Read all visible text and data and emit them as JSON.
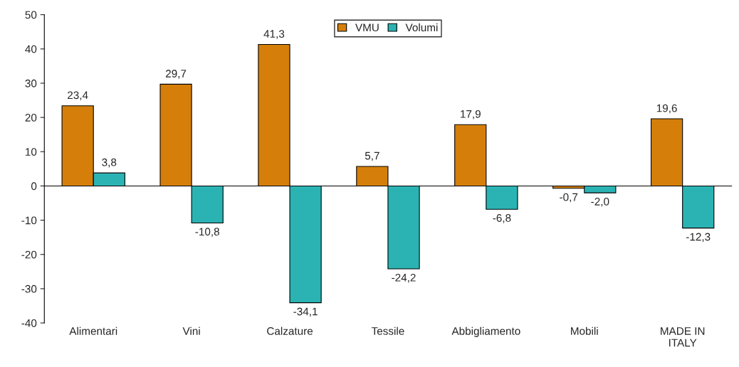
{
  "chart_data": {
    "type": "bar",
    "categories": [
      "Alimentari",
      "Vini",
      "Calzature",
      "Tessile",
      "Abbigliamento",
      "Mobili",
      "MADE IN\nITALY"
    ],
    "series": [
      {
        "name": "VMU",
        "color": "#d57f0a",
        "values": [
          23.4,
          29.7,
          41.3,
          5.7,
          17.9,
          -0.7,
          19.6
        ],
        "value_labels": [
          "23,4",
          "29,7",
          "41,3",
          "5,7",
          "17,9",
          "-0,7",
          "19,6"
        ]
      },
      {
        "name": "Volumi",
        "color": "#2bb3b3",
        "values": [
          3.8,
          -10.8,
          -34.1,
          -24.2,
          -6.8,
          -2.0,
          -12.3
        ],
        "value_labels": [
          "3,8",
          "-10,8",
          "-34,1",
          "-24,2",
          "-6,8",
          "-2,0",
          "-12,3"
        ]
      }
    ],
    "ylim": [
      -40,
      50
    ],
    "yticks": [
      -40,
      -30,
      -20,
      -10,
      0,
      10,
      20,
      30,
      40,
      50
    ],
    "legend": "top"
  }
}
